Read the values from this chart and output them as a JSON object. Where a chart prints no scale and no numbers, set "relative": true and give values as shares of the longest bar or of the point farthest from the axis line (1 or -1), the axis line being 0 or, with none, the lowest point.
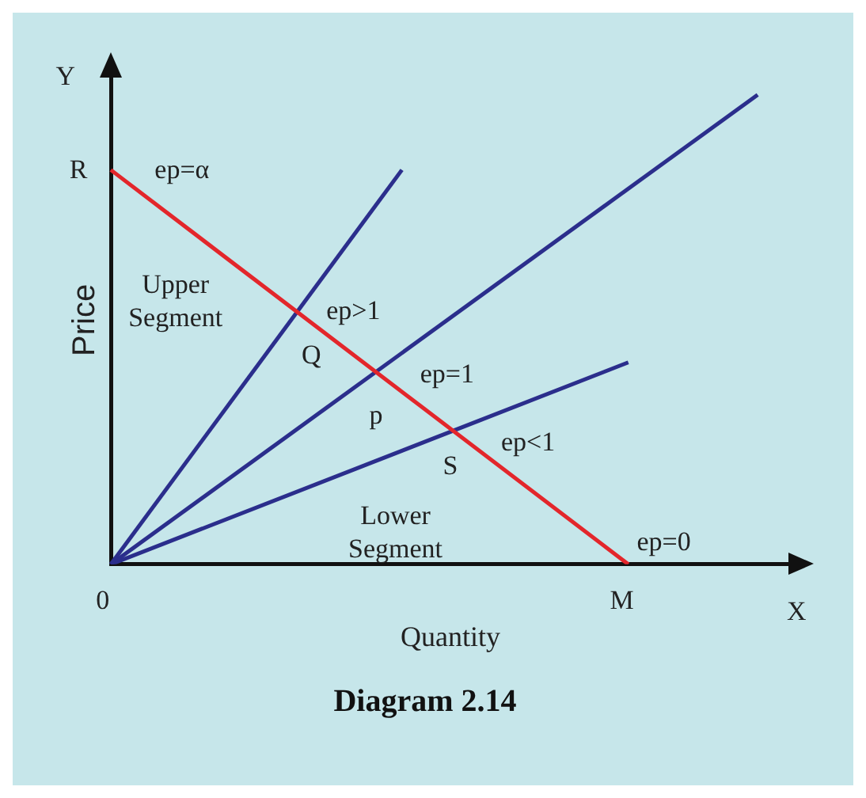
{
  "chart_data": {
    "type": "line",
    "title": "Diagram 2.14",
    "xlabel": "Quantity",
    "ylabel": "Price",
    "relative": true,
    "ylim": [
      0,
      1.04
    ],
    "grid": false,
    "legend": false,
    "marker": "none",
    "line_style": "solid",
    "categories": [
      null,
      null,
      null,
      null,
      null,
      null,
      null,
      null,
      null,
      null,
      null,
      null,
      null,
      null,
      null,
      null,
      null,
      null,
      null,
      null,
      null,
      null
    ],
    "series": [
      {
        "color": "#e3262b",
        "values": [
          0.84,
          null,
          null,
          null,
          null,
          null,
          null,
          null,
          null,
          null,
          null,
          null,
          null,
          null,
          null,
          null,
          0,
          null,
          null,
          null,
          null,
          null
        ]
      },
      {
        "color": "#2b2e8c",
        "values": [
          0,
          null,
          null,
          null,
          null,
          null,
          null,
          null,
          null,
          0.84,
          null,
          null,
          null,
          null,
          null,
          null,
          null,
          null,
          null,
          null,
          null,
          null
        ]
      },
      {
        "color": "#2b2e8c",
        "values": [
          0,
          null,
          null,
          null,
          null,
          null,
          null,
          null,
          null,
          null,
          null,
          null,
          null,
          null,
          null,
          null,
          null,
          null,
          null,
          null,
          1.0,
          null
        ]
      },
      {
        "color": "#2b2e8c",
        "values": [
          0,
          null,
          null,
          null,
          null,
          null,
          null,
          null,
          null,
          null,
          null,
          null,
          null,
          null,
          null,
          null,
          0.43,
          null,
          null,
          null,
          null,
          null
        ]
      }
    ],
    "annotations": [
      "R",
      "ep=α",
      "Upper Segment",
      "ep>1",
      "Q",
      "ep=1",
      "p",
      "ep<1",
      "S",
      "Lower Segment",
      "ep=0",
      "0",
      "M",
      "X",
      "Y"
    ]
  }
}
